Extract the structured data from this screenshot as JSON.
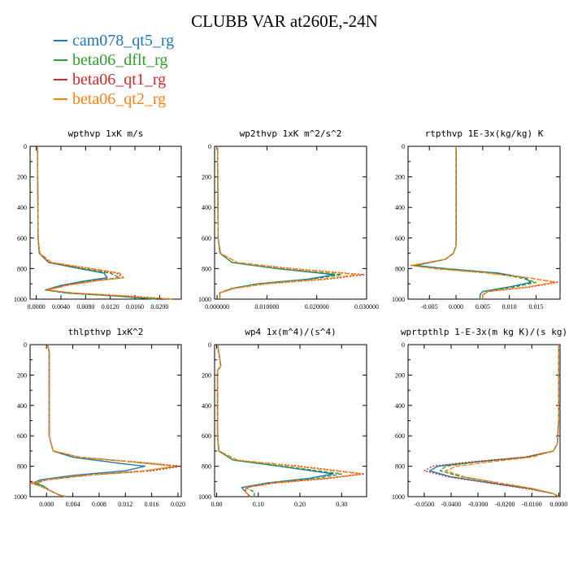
{
  "title": "CLUBB VAR at260E,-24N",
  "series": [
    {
      "name": "cam078_qt5_rg",
      "color": "#1f77b4",
      "dash": ""
    },
    {
      "name": "beta06_dflt_rg",
      "color": "#2ca02c",
      "dash": "5,2"
    },
    {
      "name": "beta06_qt1_rg",
      "color": "#d62728",
      "dash": "2,2"
    },
    {
      "name": "beta06_qt2_rg",
      "color": "#ff7f0e",
      "dash": "6,2"
    }
  ],
  "chart_data": [
    {
      "type": "line",
      "title": "wpthvp   1xK m/s",
      "xlim": [
        -0.001,
        0.0235
      ],
      "ylim": [
        1000,
        0
      ],
      "x_ticks": [
        "0.0000",
        "0.0040",
        "0.0080",
        "0.0120",
        "0.0160",
        "0.0200"
      ],
      "x_tick_values": [
        0,
        0.004,
        0.008,
        0.012,
        0.016,
        0.02
      ],
      "y_ticks": [
        "0",
        "200",
        "400",
        "600",
        "800",
        "1000"
      ],
      "y_tick_values": [
        0,
        200,
        400,
        600,
        800,
        1000
      ],
      "y": [
        0,
        600,
        700,
        760,
        800,
        830,
        860,
        880,
        910,
        940,
        960,
        980,
        1000
      ],
      "series": [
        {
          "name": "cam078_qt5_rg",
          "x": [
            0.0002,
            0.0003,
            0.0005,
            0.002,
            0.007,
            0.011,
            0.0115,
            0.008,
            0.004,
            0.0015,
            0.005,
            0.013,
            0.0195
          ]
        },
        {
          "name": "beta06_dflt_rg",
          "x": [
            0.0002,
            0.0003,
            0.0005,
            0.002,
            0.0075,
            0.012,
            0.0135,
            0.009,
            0.0045,
            0.0015,
            0.005,
            0.013,
            0.0195
          ]
        },
        {
          "name": "beta06_qt1_rg",
          "x": [
            0.0002,
            0.0003,
            0.0005,
            0.0022,
            0.0085,
            0.013,
            0.014,
            0.0095,
            0.0048,
            0.0017,
            0.006,
            0.015,
            0.022
          ]
        },
        {
          "name": "beta06_qt2_rg",
          "x": [
            0.0002,
            0.0003,
            0.0006,
            0.0025,
            0.009,
            0.0135,
            0.0142,
            0.0098,
            0.005,
            0.0018,
            0.006,
            0.015,
            0.022
          ]
        }
      ]
    },
    {
      "type": "line",
      "title": "wp2thvp   1xK m^2/s^2",
      "xlim": [
        -0.0005,
        0.03
      ],
      "ylim": [
        1000,
        0
      ],
      "x_ticks": [
        "0.000000",
        "0.010000",
        "0.020000",
        "0.030000"
      ],
      "x_tick_values": [
        0,
        0.01,
        0.02,
        0.03
      ],
      "y_ticks": [
        "0",
        "200",
        "400",
        "600",
        "800",
        "1000"
      ],
      "y_tick_values": [
        0,
        200,
        400,
        600,
        800,
        1000
      ],
      "y": [
        0,
        600,
        700,
        760,
        800,
        840,
        870,
        900,
        930,
        960,
        980,
        1000
      ],
      "series": [
        {
          "name": "cam078_qt5_rg",
          "x": [
            0.0001,
            0.0002,
            0.0006,
            0.003,
            0.012,
            0.0235,
            0.018,
            0.008,
            0.003,
            0.0005,
            0.0006,
            0.0005
          ]
        },
        {
          "name": "beta06_dflt_rg",
          "x": [
            0.0001,
            0.0002,
            0.0006,
            0.003,
            0.012,
            0.025,
            0.019,
            0.0085,
            0.003,
            0.0005,
            0.0006,
            0.0005
          ]
        },
        {
          "name": "beta06_qt1_rg",
          "x": [
            0.0001,
            0.0002,
            0.0007,
            0.004,
            0.015,
            0.0295,
            0.022,
            0.01,
            0.0035,
            0.0005,
            0.0006,
            0.0005
          ]
        },
        {
          "name": "beta06_qt2_rg",
          "x": [
            0.0001,
            0.0002,
            0.0007,
            0.004,
            0.014,
            0.0285,
            0.021,
            0.0095,
            0.0034,
            0.0005,
            0.0006,
            0.0005
          ]
        }
      ]
    },
    {
      "type": "line",
      "title": "rtpthvp   1E-3x(kg/kg) K",
      "xlim": [
        -0.009,
        0.0195
      ],
      "ylim": [
        1000,
        0
      ],
      "x_ticks": [
        "-0.005",
        "0.000",
        "0.005",
        "0.010",
        "0.015"
      ],
      "x_tick_values": [
        -0.005,
        0,
        0.005,
        0.01,
        0.015
      ],
      "y_ticks": [
        "0",
        "200",
        "400",
        "600",
        "800",
        "1000"
      ],
      "y_tick_values": [
        0,
        200,
        400,
        600,
        800,
        1000
      ],
      "y": [
        0,
        500,
        650,
        700,
        740,
        780,
        800,
        830,
        860,
        890,
        920,
        950,
        970,
        1000
      ],
      "series": [
        {
          "name": "cam078_qt5_rg",
          "x": [
            0,
            0,
            0,
            -0.0005,
            -0.002,
            -0.0075,
            -0.002,
            0.008,
            0.013,
            0.014,
            0.01,
            0.005,
            0.0045,
            0.0045
          ]
        },
        {
          "name": "beta06_dflt_rg",
          "x": [
            0,
            0,
            0,
            -0.0005,
            -0.002,
            -0.008,
            -0.003,
            0.007,
            0.012,
            0.015,
            0.011,
            0.005,
            0.0045,
            0.0045
          ]
        },
        {
          "name": "beta06_qt1_rg",
          "x": [
            0,
            0,
            0,
            -0.0005,
            -0.002,
            -0.0085,
            -0.004,
            0.006,
            0.0135,
            0.019,
            0.014,
            0.006,
            0.005,
            0.005
          ]
        },
        {
          "name": "beta06_qt2_rg",
          "x": [
            0,
            0,
            0,
            -0.0005,
            -0.002,
            -0.0085,
            -0.004,
            0.006,
            0.0135,
            0.0185,
            0.0135,
            0.006,
            0.005,
            0.005
          ]
        }
      ]
    },
    {
      "type": "line",
      "title": "thlpthvp   1xK^2",
      "xlim": [
        -0.0025,
        0.0205
      ],
      "ylim": [
        1000,
        0
      ],
      "x_ticks": [
        "0.000",
        "0.004",
        "0.008",
        "0.012",
        "0.016",
        "0.020"
      ],
      "x_tick_values": [
        0,
        0.004,
        0.008,
        0.012,
        0.016,
        0.02
      ],
      "y_ticks": [
        "0",
        "200",
        "400",
        "600",
        "800",
        "1000"
      ],
      "y_tick_values": [
        0,
        200,
        400,
        600,
        800,
        1000
      ],
      "y": [
        0,
        50,
        600,
        700,
        740,
        780,
        800,
        830,
        860,
        890,
        910,
        930,
        960,
        990,
        1000
      ],
      "series": [
        {
          "name": "cam078_qt5_rg",
          "x": [
            0.0002,
            0.0004,
            0.0004,
            0.001,
            0.004,
            0.011,
            0.015,
            0.012,
            0.004,
            -0.001,
            -0.002,
            -0.0005,
            0.0005,
            0.002,
            0.003
          ]
        },
        {
          "name": "beta06_dflt_rg",
          "x": [
            0.0002,
            0.0004,
            0.0004,
            0.001,
            0.005,
            0.015,
            0.02,
            0.015,
            0.006,
            0.0,
            -0.0015,
            -0.0005,
            0.0005,
            0.002,
            0.003
          ]
        },
        {
          "name": "beta06_qt1_rg",
          "x": [
            0.0002,
            0.0004,
            0.0004,
            0.001,
            0.005,
            0.016,
            0.0205,
            0.016,
            0.006,
            0.0,
            -0.0025,
            -0.001,
            0.0005,
            0.002,
            0.003
          ]
        },
        {
          "name": "beta06_qt2_rg",
          "x": [
            0.0002,
            0.0004,
            0.0004,
            0.001,
            0.005,
            0.015,
            0.0195,
            0.015,
            0.0055,
            0.0,
            -0.0022,
            -0.001,
            0.0005,
            0.002,
            0.003
          ]
        }
      ]
    },
    {
      "type": "line",
      "title": "wp4   1x(m^4)/(s^4)",
      "xlim": [
        -0.005,
        0.36
      ],
      "ylim": [
        1000,
        0
      ],
      "x_ticks": [
        "0.00",
        "0.10",
        "0.20",
        "0.30"
      ],
      "x_tick_values": [
        0,
        0.1,
        0.2,
        0.3
      ],
      "y_ticks": [
        "0",
        "200",
        "400",
        "600",
        "800",
        "1000"
      ],
      "y_tick_values": [
        0,
        200,
        400,
        600,
        800,
        1000
      ],
      "y": [
        0,
        140,
        170,
        600,
        700,
        760,
        800,
        850,
        880,
        910,
        940,
        970,
        1000
      ],
      "series": [
        {
          "name": "cam078_qt5_rg",
          "x": [
            0.002,
            0.01,
            0.002,
            0.002,
            0.005,
            0.04,
            0.15,
            0.28,
            0.22,
            0.12,
            0.06,
            0.07,
            0.08
          ]
        },
        {
          "name": "beta06_dflt_rg",
          "x": [
            0.002,
            0.01,
            0.002,
            0.002,
            0.005,
            0.04,
            0.16,
            0.3,
            0.24,
            0.13,
            0.07,
            0.09,
            0.09
          ]
        },
        {
          "name": "beta06_qt1_rg",
          "x": [
            0.002,
            0.01,
            0.002,
            0.002,
            0.006,
            0.05,
            0.2,
            0.355,
            0.27,
            0.14,
            0.07,
            0.07,
            0.08
          ]
        },
        {
          "name": "beta06_qt2_rg",
          "x": [
            0.002,
            0.01,
            0.002,
            0.002,
            0.006,
            0.05,
            0.19,
            0.345,
            0.26,
            0.135,
            0.07,
            0.07,
            0.08
          ]
        }
      ]
    },
    {
      "type": "line",
      "title": "wprtpthlp   1-E-3x(m kg K)/(s kg)",
      "xlim": [
        -0.056,
        0.0005
      ],
      "ylim": [
        1000,
        0
      ],
      "x_ticks": [
        "-0.0500",
        "-0.0400",
        "-0.0300",
        "-0.0200",
        "-0.0100",
        "0.0000"
      ],
      "x_tick_values": [
        -0.05,
        -0.04,
        -0.03,
        -0.02,
        -0.01,
        0
      ],
      "y_ticks": [
        "0",
        "200",
        "400",
        "600",
        "800",
        "1000"
      ],
      "y_tick_values": [
        0,
        200,
        400,
        600,
        800,
        1000
      ],
      "y": [
        0,
        500,
        650,
        700,
        740,
        770,
        800,
        830,
        870,
        910,
        950,
        980,
        1000
      ],
      "series": [
        {
          "name": "cam078_qt5_rg",
          "x": [
            0,
            0,
            -0.0005,
            -0.002,
            -0.012,
            -0.03,
            -0.045,
            -0.048,
            -0.04,
            -0.025,
            -0.01,
            -0.002,
            0
          ]
        },
        {
          "name": "beta06_dflt_rg",
          "x": [
            0,
            0,
            -0.0005,
            -0.002,
            -0.012,
            -0.03,
            -0.042,
            -0.044,
            -0.036,
            -0.022,
            -0.009,
            -0.002,
            0
          ]
        },
        {
          "name": "beta06_qt1_rg",
          "x": [
            0,
            0,
            -0.0005,
            -0.002,
            -0.013,
            -0.032,
            -0.047,
            -0.05,
            -0.041,
            -0.026,
            -0.011,
            -0.002,
            0
          ]
        },
        {
          "name": "beta06_qt2_rg",
          "x": [
            0,
            0,
            -0.0005,
            -0.002,
            -0.01,
            -0.025,
            -0.038,
            -0.042,
            -0.035,
            -0.022,
            -0.009,
            -0.002,
            0
          ]
        }
      ]
    }
  ]
}
